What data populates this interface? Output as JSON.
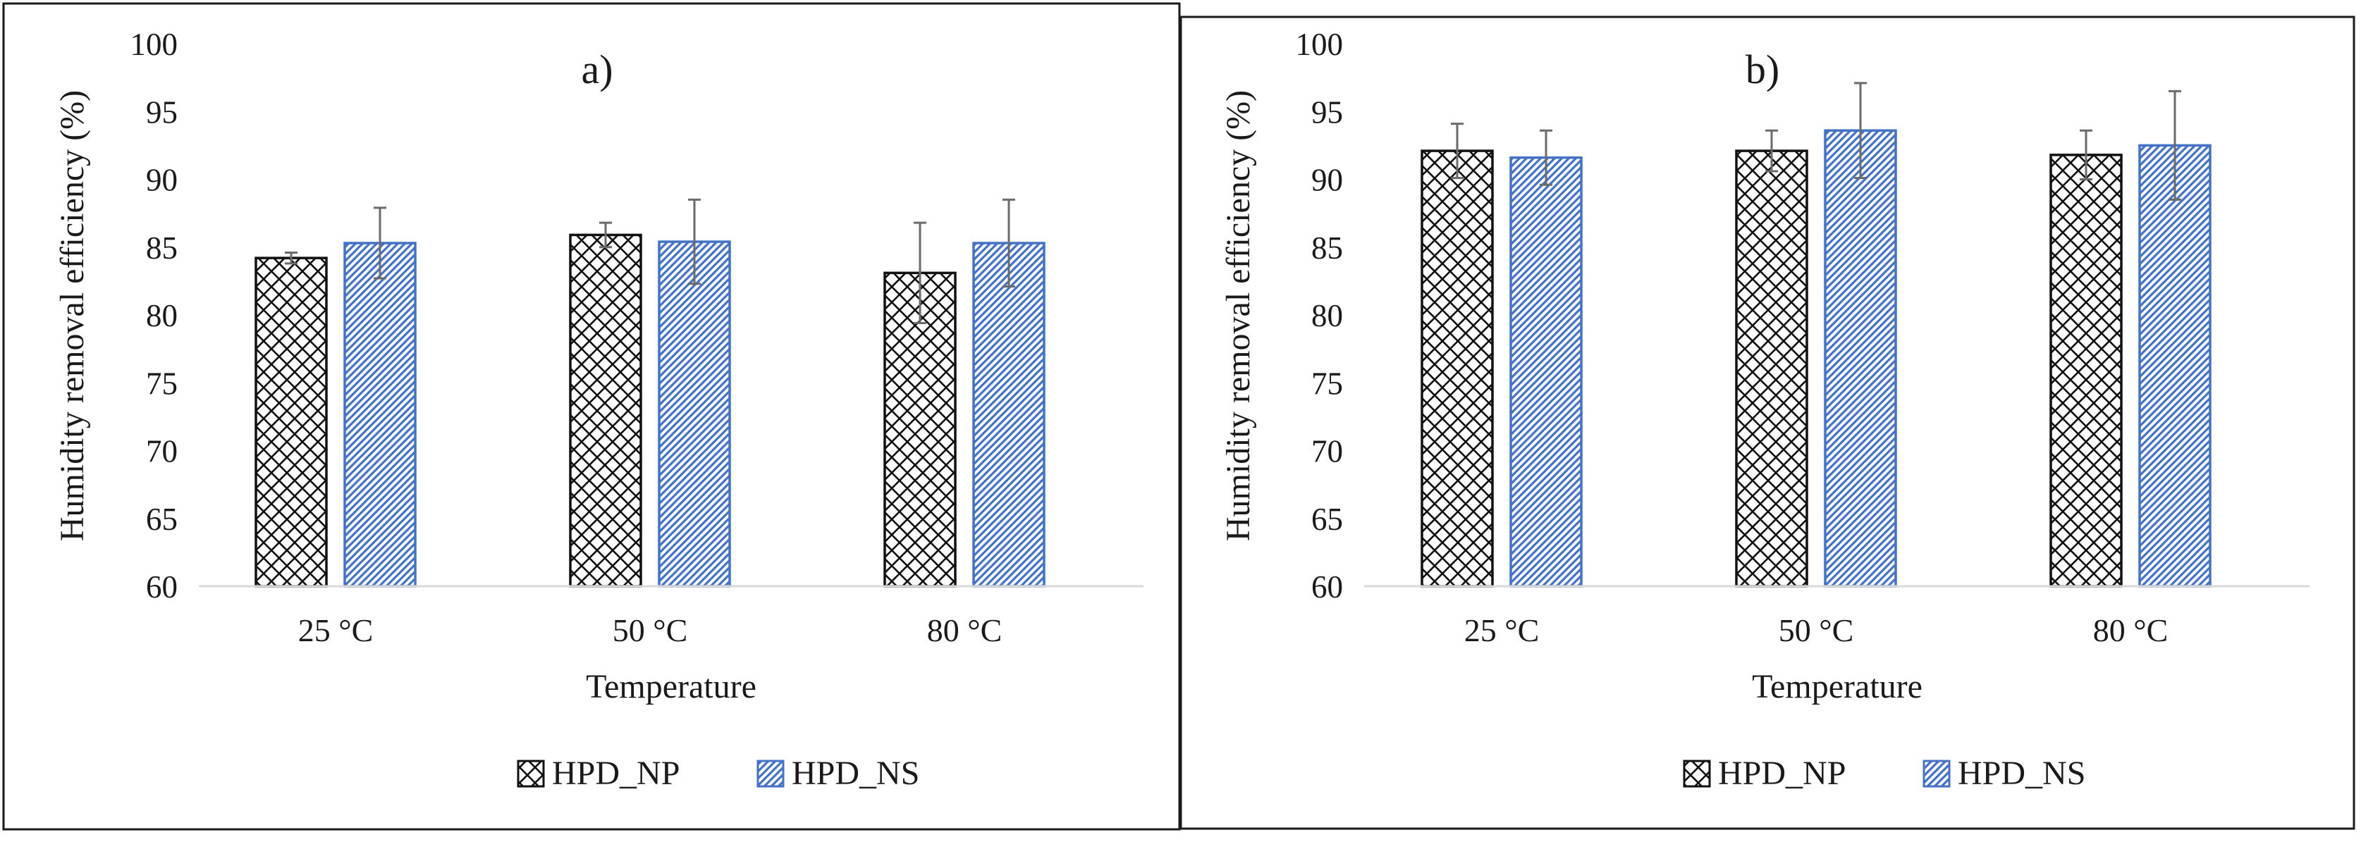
{
  "chart_data": [
    {
      "type": "bar",
      "title": "a)",
      "xlabel": "Temperature",
      "ylabel": "Humidity removal efficiency (%)",
      "categories": [
        "25 °C",
        "50 °C",
        "80 °C"
      ],
      "ylim": [
        60,
        100
      ],
      "yticks": [
        "60",
        "65",
        "70",
        "75",
        "80",
        "85",
        "90",
        "95",
        "100"
      ],
      "grid": false,
      "legend_position": "bottom",
      "series": [
        {
          "name": "HPD_NP",
          "values": [
            84.2,
            85.9,
            83.1
          ],
          "errors": [
            0.4,
            0.9,
            3.7
          ],
          "pattern": "crosshatch",
          "color": "#000000"
        },
        {
          "name": "HPD_NS",
          "values": [
            85.3,
            85.4,
            85.3
          ],
          "errors": [
            2.6,
            3.1,
            3.2
          ],
          "pattern": "diagonal",
          "color": "#4472C4"
        }
      ]
    },
    {
      "type": "bar",
      "title": "b)",
      "xlabel": "Temperature",
      "ylabel": "Humidity removal efficiency (%)",
      "categories": [
        "25 °C",
        "50 °C",
        "80 °C"
      ],
      "ylim": [
        60,
        100
      ],
      "yticks": [
        "60",
        "65",
        "70",
        "75",
        "80",
        "85",
        "90",
        "95",
        "100"
      ],
      "grid": false,
      "legend_position": "bottom",
      "series": [
        {
          "name": "HPD_NP",
          "values": [
            92.1,
            92.1,
            91.8
          ],
          "errors": [
            2.0,
            1.5,
            1.8
          ],
          "pattern": "crosshatch",
          "color": "#000000"
        },
        {
          "name": "HPD_NS",
          "values": [
            91.6,
            93.6,
            92.5
          ],
          "errors": [
            2.0,
            3.5,
            4.0
          ],
          "pattern": "diagonal",
          "color": "#4472C4"
        }
      ]
    }
  ],
  "colors": {
    "axis": "#d9d9d9",
    "frame": "#1a1a1a",
    "error_bar": "#6b6b6b"
  }
}
